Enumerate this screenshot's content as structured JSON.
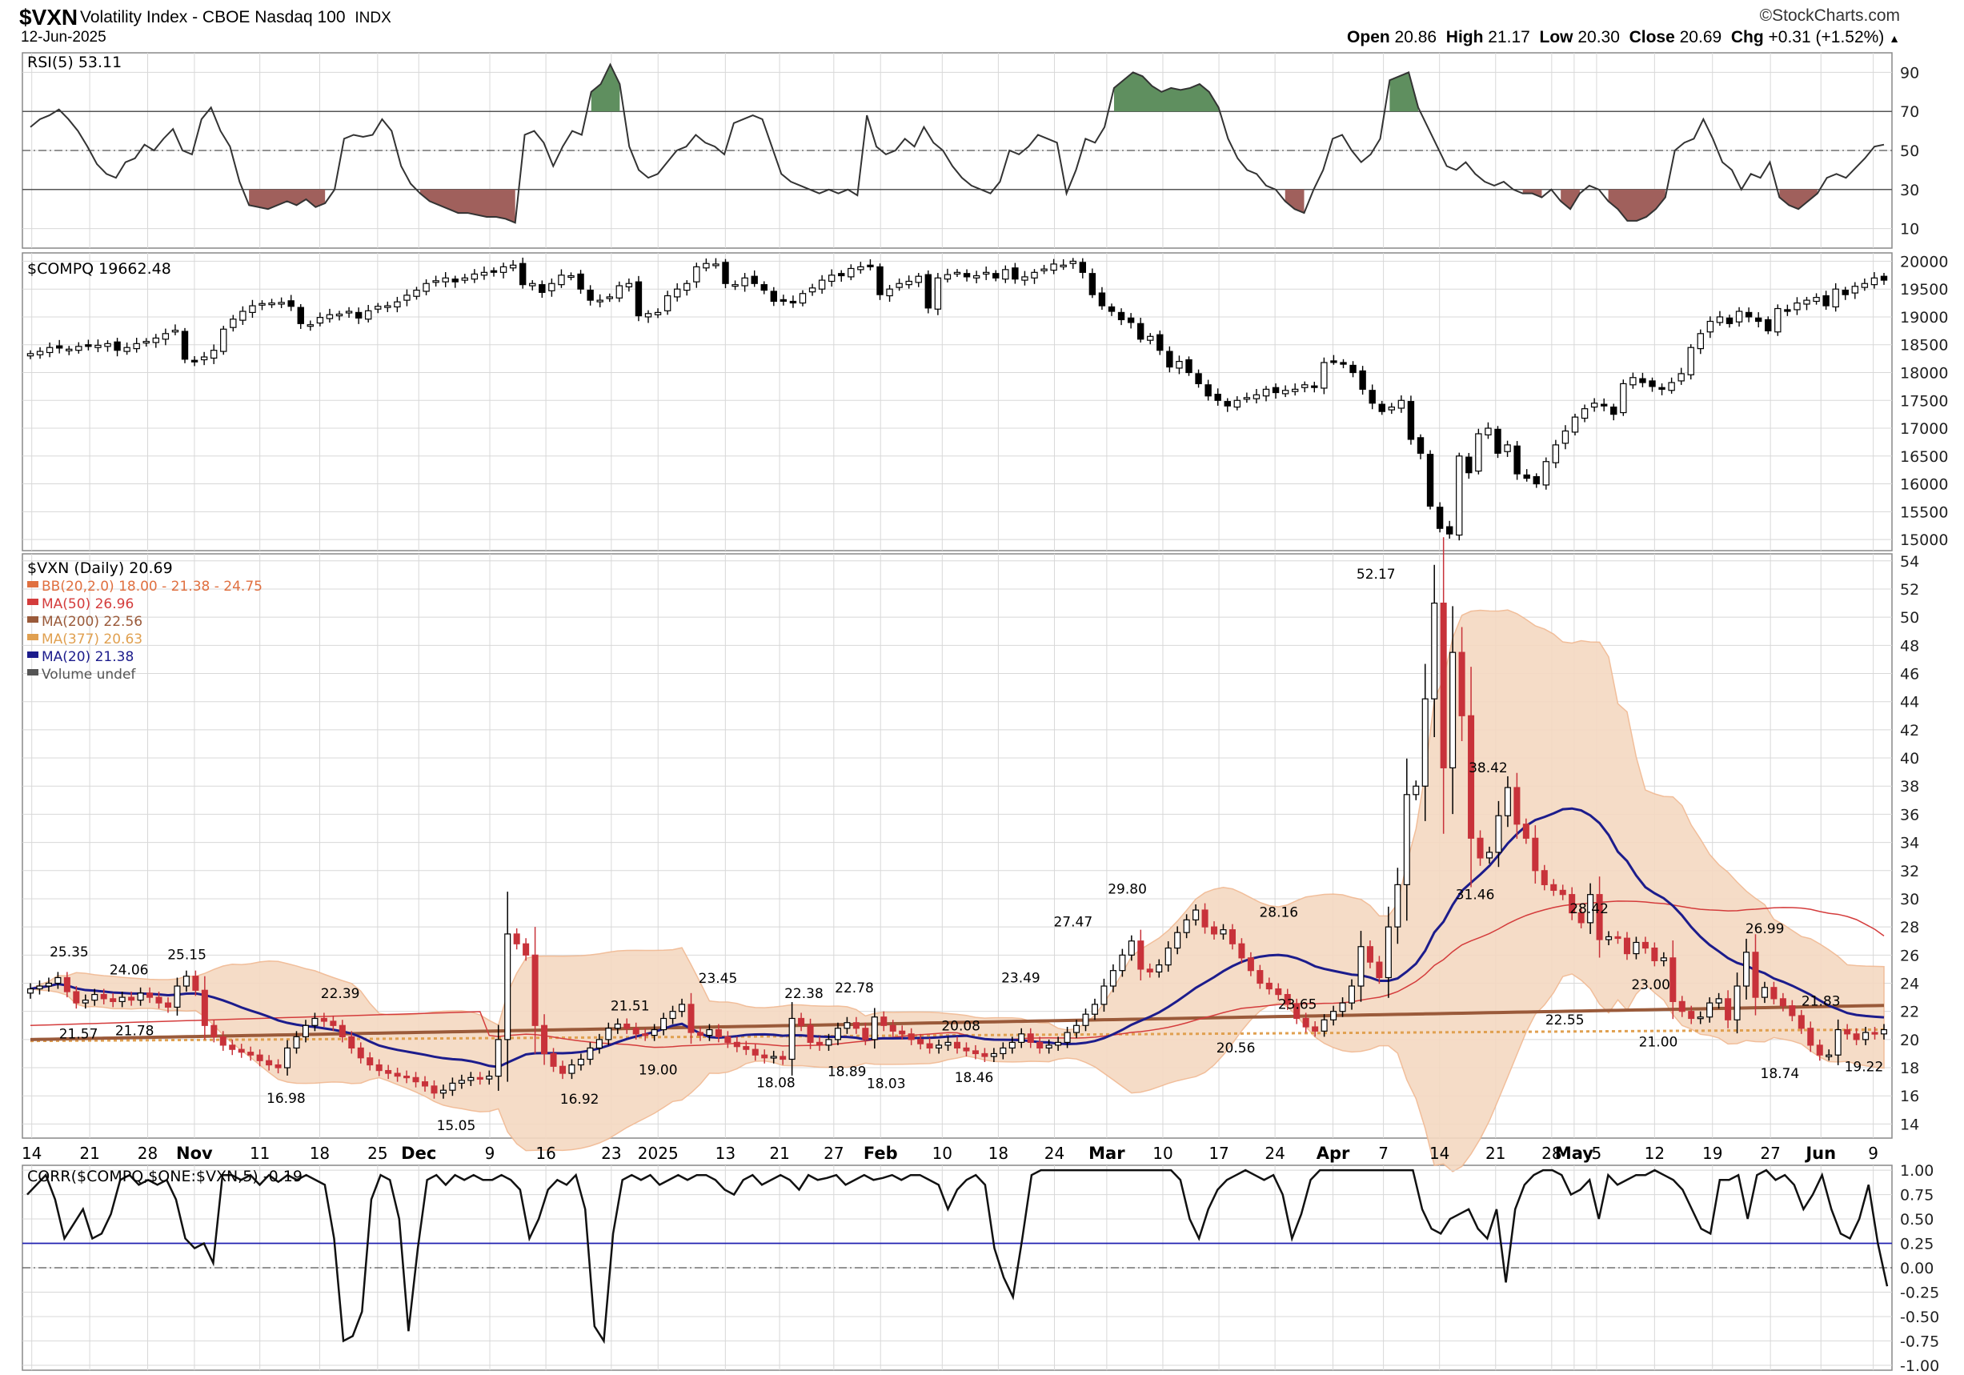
{
  "header": {
    "symbol": "$VXN",
    "description": "Volatility Index - CBOE Nasdaq 100",
    "exchange": "INDX",
    "date": "12-Jun-2025",
    "brand": "©StockCharts.com",
    "open_label": "Open",
    "open": "20.86",
    "high_label": "High",
    "high": "21.17",
    "low_label": "Low",
    "low": "20.30",
    "close_label": "Close",
    "close": "20.69",
    "chg_label": "Chg",
    "chg": "+0.31 (+1.52%)"
  },
  "colors": {
    "up_candle": "#ffffff",
    "down_candle": "#000000",
    "down_red": "#c8323a",
    "bb_fill": "#f5d9c2",
    "bb_line": "#f0b790",
    "ma50": "#d43c3c",
    "ma200": "#9a5a3a",
    "ma377": "#e0a050",
    "ma20": "#1c1c8c",
    "rsi_ob_fill": "#5f8f5f",
    "rsi_os_fill": "#a0605c",
    "grid": "#d8d8d8",
    "corr_ref": "#2020b0"
  },
  "chart_data": [
    {
      "panel": "rsi",
      "type": "line",
      "title": "RSI(5) 53.11",
      "y_ticks": [
        10,
        30,
        50,
        70,
        90
      ],
      "ylim": [
        0,
        100
      ],
      "overbought": 70,
      "oversold": 30,
      "midline": 50,
      "values": [
        62,
        66,
        68,
        71,
        66,
        60,
        52,
        43,
        38,
        36,
        44,
        46,
        53,
        50,
        56,
        61,
        50,
        48,
        66,
        72,
        60,
        52,
        34,
        22,
        21,
        20,
        22,
        24,
        22,
        25,
        21,
        23,
        30,
        56,
        58,
        57,
        58,
        66,
        60,
        42,
        33,
        28,
        24,
        22,
        20,
        18,
        18,
        17,
        16,
        16,
        15,
        13,
        58,
        60,
        54,
        42,
        52,
        60,
        58,
        80,
        84,
        94,
        84,
        52,
        40,
        36,
        38,
        44,
        50,
        52,
        58,
        54,
        52,
        48,
        64,
        66,
        68,
        66,
        52,
        38,
        34,
        32,
        30,
        28,
        30,
        28,
        30,
        27,
        68,
        52,
        48,
        50,
        56,
        52,
        62,
        54,
        50,
        42,
        36,
        32,
        30,
        28,
        34,
        50,
        48,
        52,
        58,
        56,
        54,
        28,
        40,
        56,
        54,
        62,
        82,
        86,
        90,
        88,
        83,
        80,
        82,
        81,
        82,
        84,
        80,
        72,
        56,
        46,
        40,
        38,
        32,
        30,
        24,
        20,
        18,
        30,
        40,
        56,
        58,
        50,
        44,
        48,
        56,
        86,
        88,
        90,
        72,
        62,
        52,
        42,
        40,
        44,
        38,
        34,
        32,
        34,
        30,
        28,
        28,
        26,
        30,
        24,
        20,
        28,
        32,
        30,
        24,
        20,
        14,
        14,
        16,
        20,
        26,
        50,
        54,
        56,
        66,
        56,
        44,
        40,
        30,
        38,
        36,
        44,
        26,
        22,
        20,
        24,
        28,
        36,
        38,
        36,
        41,
        46,
        52,
        53
      ],
      "x_ticks": [
        "14",
        "21",
        "28",
        "Nov",
        "11",
        "18",
        "25",
        "Dec",
        "9",
        "16",
        "23",
        "2025",
        "13",
        "21",
        "27",
        "Feb",
        "10",
        "18",
        "24",
        "Mar",
        "10",
        "17",
        "24",
        "Apr",
        "7",
        "14",
        "21",
        "28",
        "May",
        "5",
        "12",
        "19",
        "27",
        "Jun",
        "9"
      ]
    },
    {
      "panel": "compq",
      "type": "candlestick",
      "title": "$COMPQ 19662.48",
      "y_ticks": [
        15000,
        15500,
        16000,
        16500,
        17000,
        17500,
        18000,
        18500,
        19000,
        19500,
        20000
      ],
      "ylim": [
        14800,
        20150
      ],
      "close": [
        18340,
        18380,
        18450,
        18440,
        18420,
        18470,
        18470,
        18490,
        18520,
        18400,
        18450,
        18520,
        18560,
        18620,
        18700,
        18760,
        18240,
        18200,
        18280,
        18400,
        18780,
        18960,
        19100,
        19200,
        19240,
        19250,
        19260,
        19190,
        18880,
        18860,
        18990,
        19040,
        19050,
        19100,
        18980,
        19110,
        19190,
        19200,
        19270,
        19390,
        19480,
        19600,
        19650,
        19700,
        19630,
        19700,
        19770,
        19800,
        19820,
        19900,
        19930,
        19580,
        19600,
        19440,
        19600,
        19750,
        19740,
        19500,
        19300,
        19300,
        19360,
        19560,
        19600,
        19020,
        19060,
        19080,
        19380,
        19500,
        19600,
        19900,
        19960,
        19950,
        19600,
        19580,
        19700,
        19600,
        19480,
        19280,
        19300,
        19270,
        19420,
        19520,
        19660,
        19750,
        19740,
        19870,
        19900,
        19920,
        19400,
        19500,
        19600,
        19640,
        19730,
        19160,
        19700,
        19760,
        19800,
        19720,
        19740,
        19800,
        19700,
        19850,
        19680,
        19720,
        19800,
        19860,
        19950,
        19930,
        20000,
        19800,
        19400,
        19200,
        19100,
        18950,
        18900,
        18600,
        18650,
        18400,
        18100,
        18200,
        18000,
        17800,
        17580,
        17500,
        17400,
        17500,
        17550,
        17600,
        17700,
        17640,
        17680,
        17700,
        17780,
        17740,
        18180,
        18200,
        18150,
        18000,
        17700,
        17450,
        17300,
        17380,
        17500,
        16800,
        16550,
        15600,
        15200,
        15100,
        16500,
        16200,
        16900,
        17000,
        16550,
        16700,
        16180,
        16100,
        16000,
        16400,
        16700,
        16950,
        17200,
        17350,
        17450,
        17400,
        17250,
        17800,
        17910,
        17820,
        17750,
        17700,
        17820,
        17980,
        18450,
        18700,
        18920,
        19000,
        18880,
        19100,
        19000,
        18920,
        18750,
        19150,
        19100,
        19250,
        19300,
        19350,
        19200,
        19500,
        19400,
        19550,
        19600,
        19700,
        19660
      ]
    },
    {
      "panel": "vxn",
      "type": "candlestick",
      "title": "$VXN (Daily) 20.69",
      "y_ticks": [
        14,
        16,
        18,
        20,
        22,
        24,
        26,
        28,
        30,
        32,
        34,
        36,
        38,
        40,
        42,
        44,
        46,
        48,
        50,
        52,
        54
      ],
      "ylim": [
        13,
        54.5
      ],
      "legend": [
        {
          "label": "BB(20,2.0) 18.00 - 21.38 - 24.75",
          "color": "#e07040"
        },
        {
          "label": "MA(50) 26.96",
          "color": "#d43c3c"
        },
        {
          "label": "MA(200) 22.56",
          "color": "#9a5a3a"
        },
        {
          "label": "MA(377) 20.63",
          "color": "#e0a050"
        },
        {
          "label": "MA(20) 21.38",
          "color": "#1c1c8c"
        },
        {
          "label": "Volume undef",
          "color": "#555555"
        }
      ],
      "close": [
        23.6,
        23.8,
        24.0,
        24.4,
        23.4,
        22.6,
        22.8,
        23.2,
        22.9,
        22.7,
        23.0,
        22.8,
        23.3,
        23.0,
        22.6,
        22.3,
        23.8,
        24.5,
        23.5,
        21.0,
        20.2,
        19.6,
        19.3,
        19.1,
        18.9,
        18.5,
        18.2,
        18.0,
        19.4,
        20.2,
        21.0,
        21.5,
        21.3,
        21.0,
        20.2,
        19.4,
        18.7,
        18.2,
        17.8,
        17.6,
        17.4,
        17.3,
        17.0,
        16.7,
        16.2,
        16.4,
        16.9,
        17.1,
        17.3,
        17.2,
        17.4,
        20.0,
        27.5,
        26.8,
        26.0,
        21.0,
        19.0,
        18.1,
        17.6,
        18.2,
        18.6,
        19.4,
        20.0,
        20.8,
        21.1,
        20.8,
        20.4,
        20.3,
        20.7,
        21.5,
        22.0,
        22.5,
        20.5,
        20.3,
        20.7,
        20.2,
        19.8,
        19.5,
        19.3,
        18.9,
        18.7,
        18.8,
        18.6,
        21.5,
        21.0,
        19.8,
        19.6,
        20.0,
        20.8,
        21.2,
        20.8,
        20.0,
        21.6,
        21.0,
        20.6,
        20.4,
        20.0,
        19.7,
        19.4,
        19.6,
        19.8,
        19.4,
        19.2,
        19.0,
        18.8,
        19.0,
        19.4,
        19.8,
        20.4,
        19.8,
        19.4,
        19.6,
        19.8,
        20.5,
        21.0,
        21.8,
        22.5,
        23.8,
        24.9,
        26.0,
        27.0,
        25.0,
        24.8,
        25.3,
        26.5,
        27.6,
        28.5,
        29.2,
        28.0,
        27.5,
        27.8,
        26.8,
        25.8,
        24.9,
        24.0,
        23.6,
        23.2,
        22.5,
        21.5,
        20.9,
        20.6,
        21.4,
        22.0,
        22.6,
        23.8,
        26.6,
        25.5,
        24.4,
        28.0,
        31.0,
        37.4,
        38.0,
        44.2,
        51.0,
        39.3,
        47.5,
        43.0,
        34.3,
        32.9,
        33.3,
        35.9,
        37.9,
        35.3,
        34.3,
        32.0,
        31.0,
        30.6,
        30.3,
        29.0,
        28.3,
        30.3,
        27.1,
        27.3,
        27.2,
        26.1,
        26.9,
        26.5,
        25.6,
        25.8,
        22.7,
        22.0,
        21.5,
        21.6,
        22.6,
        22.9,
        21.4,
        23.8,
        26.2,
        23.0,
        23.7,
        22.9,
        22.4,
        21.7,
        20.8,
        19.6,
        18.9,
        18.9,
        20.7,
        20.4,
        20.0,
        20.5,
        20.4,
        20.7
      ],
      "labels": [
        "25.35",
        "24.06",
        "25.15",
        "21.57",
        "21.78",
        "22.39",
        "16.98",
        "15.05",
        "16.92",
        "21.51",
        "19.00",
        "23.45",
        "22.38",
        "22.78",
        "18.08",
        "18.89",
        "18.03",
        "20.08",
        "18.46",
        "23.49",
        "27.47",
        "29.80",
        "20.56",
        "28.16",
        "23.65",
        "52.17",
        "38.42",
        "31.46",
        "22.55",
        "28.42",
        "23.00",
        "21.00",
        "26.99",
        "21.83",
        "18.74",
        "19.22"
      ],
      "x_ticks": [
        "14",
        "21",
        "28",
        "Nov",
        "11",
        "18",
        "25",
        "Dec",
        "9",
        "16",
        "23",
        "2025",
        "13",
        "21",
        "27",
        "Feb",
        "10",
        "18",
        "24",
        "Mar",
        "10",
        "17",
        "24",
        "Apr",
        "7",
        "14",
        "21",
        "28",
        "May",
        "5",
        "12",
        "19",
        "27",
        "Jun",
        "9"
      ]
    },
    {
      "panel": "corr",
      "type": "line",
      "title": "CORR($COMPQ,$ONE:$VXN,5) -0.19",
      "y_ticks": [
        "1.00",
        "0.75",
        "0.50",
        "0.25",
        "0.00",
        "-0.25",
        "-0.50",
        "-0.75",
        "-1.00"
      ],
      "ylim": [
        -1.05,
        1.05
      ],
      "reference": 0.25,
      "values": [
        0.75,
        0.85,
        0.95,
        0.7,
        0.3,
        0.45,
        0.6,
        0.3,
        0.35,
        0.55,
        0.9,
        0.95,
        0.85,
        0.9,
        0.85,
        0.9,
        0.7,
        0.3,
        0.2,
        0.25,
        0.05,
        0.95,
        0.95,
        0.9,
        0.95,
        0.85,
        0.95,
        0.88,
        0.95,
        0.9,
        0.95,
        0.9,
        0.85,
        0.3,
        -0.75,
        -0.7,
        -0.45,
        0.7,
        0.95,
        0.9,
        0.5,
        -0.65,
        0.2,
        0.9,
        0.95,
        0.85,
        0.95,
        0.9,
        0.95,
        0.9,
        0.9,
        0.95,
        0.9,
        0.8,
        0.3,
        0.5,
        0.8,
        0.9,
        0.85,
        0.95,
        0.6,
        -0.6,
        -0.75,
        0.35,
        0.9,
        0.95,
        0.9,
        0.95,
        0.85,
        0.9,
        0.95,
        0.9,
        0.95,
        0.95,
        0.9,
        0.8,
        0.75,
        0.9,
        0.95,
        0.85,
        0.9,
        0.95,
        0.9,
        0.8,
        0.95,
        0.9,
        0.92,
        0.95,
        0.85,
        0.9,
        0.95,
        0.9,
        0.92,
        0.95,
        0.9,
        0.95,
        0.95,
        0.9,
        0.85,
        0.6,
        0.8,
        0.9,
        0.95,
        0.85,
        0.2,
        -0.1,
        -0.3,
        0.3,
        0.95,
        1.0,
        1.0,
        1.0,
        1.0,
        1.0,
        1.0,
        1.0,
        1.0,
        1.0,
        1.0,
        1.0,
        1.0,
        1.0,
        1.0,
        1.0,
        0.9,
        0.5,
        0.3,
        0.6,
        0.8,
        0.9,
        0.95,
        1.0,
        0.95,
        0.9,
        0.95,
        0.75,
        0.3,
        0.55,
        0.9,
        1.0,
        1.0,
        1.0,
        1.0,
        1.0,
        1.0,
        1.0,
        1.0,
        1.0,
        1.0,
        1.0,
        0.6,
        0.4,
        0.35,
        0.5,
        0.55,
        0.6,
        0.4,
        0.3,
        0.6,
        -0.15,
        0.6,
        0.85,
        0.95,
        1.0,
        1.0,
        0.95,
        0.75,
        0.8,
        0.9,
        0.5,
        0.95,
        0.85,
        0.9,
        0.95,
        0.95,
        1.0,
        0.95,
        0.9,
        0.8,
        0.6,
        0.4,
        0.35,
        0.9,
        0.9,
        0.95,
        0.5,
        0.95,
        1.0,
        0.9,
        0.95,
        0.85,
        0.6,
        0.75,
        0.95,
        0.6,
        0.35,
        0.3,
        0.5,
        0.85,
        0.25,
        -0.19
      ]
    }
  ]
}
